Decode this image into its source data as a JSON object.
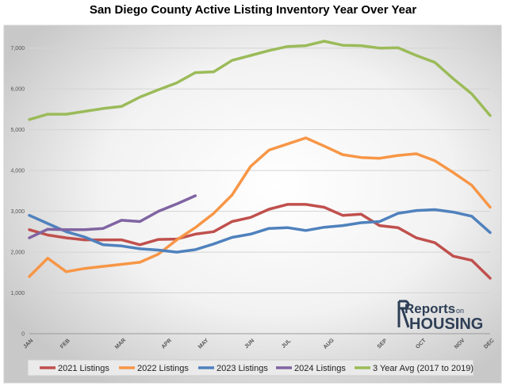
{
  "title": "San Diego County Active Listing Inventory Year Over Year",
  "logo": {
    "line1": "Reports",
    "on": "on",
    "line2": "HOUSING"
  },
  "chart_data": {
    "type": "line",
    "title": "San Diego County Active Listing Inventory Year Over Year",
    "xlabel": "",
    "ylabel": "",
    "ylim": [
      0,
      7500
    ],
    "yticks": [
      0,
      1000,
      2000,
      3000,
      4000,
      5000,
      6000,
      7000
    ],
    "ytick_labels": [
      "0",
      "1,000",
      "2,000",
      "3,000",
      "4,000",
      "5,000",
      "6,000",
      "7,000"
    ],
    "month_labels": [
      "JAN",
      "FEB",
      "MAR",
      "APR",
      "MAY",
      "JUN",
      "JUL",
      "AUG",
      "SEP",
      "OCT",
      "NOV",
      "DEC"
    ],
    "grid": true,
    "legend_position": "bottom",
    "series": [
      {
        "name": "2021 Listings",
        "color": "#c0504d",
        "values": [
          2550,
          2420,
          2350,
          2300,
          2300,
          2300,
          2180,
          2310,
          2320,
          2440,
          2500,
          2750,
          2850,
          3050,
          3170,
          3170,
          3100,
          2900,
          2930,
          2650,
          2600,
          2350,
          2230,
          1900,
          1800,
          1360
        ]
      },
      {
        "name": "2022 Listings",
        "color": "#f79646",
        "values": [
          1400,
          1850,
          1520,
          1600,
          1650,
          1700,
          1750,
          1950,
          2300,
          2600,
          2950,
          3400,
          4100,
          4500,
          4650,
          4800,
          4600,
          4390,
          4320,
          4300,
          4370,
          4410,
          4240,
          3950,
          3640,
          3100
        ]
      },
      {
        "name": "2023 Listings",
        "color": "#4f81bd",
        "values": [
          2900,
          2700,
          2500,
          2370,
          2180,
          2150,
          2080,
          2050,
          2000,
          2060,
          2200,
          2360,
          2440,
          2580,
          2600,
          2530,
          2610,
          2650,
          2720,
          2750,
          2950,
          3020,
          3040,
          2980,
          2880,
          2480
        ]
      },
      {
        "name": "2024 Listings",
        "color": "#8064a2",
        "values": [
          2350,
          2560,
          2550,
          2550,
          2580,
          2780,
          2750,
          3000,
          3180,
          3380
        ]
      },
      {
        "name": "3 Year Avg (2017 to 2019)",
        "color": "#9bbb59",
        "values": [
          5250,
          5380,
          5380,
          5450,
          5520,
          5570,
          5800,
          5980,
          6150,
          6400,
          6420,
          6700,
          6820,
          6940,
          7040,
          7060,
          7170,
          7070,
          7060,
          7000,
          7010,
          6820,
          6650,
          6250,
          5880,
          5350
        ]
      }
    ]
  }
}
